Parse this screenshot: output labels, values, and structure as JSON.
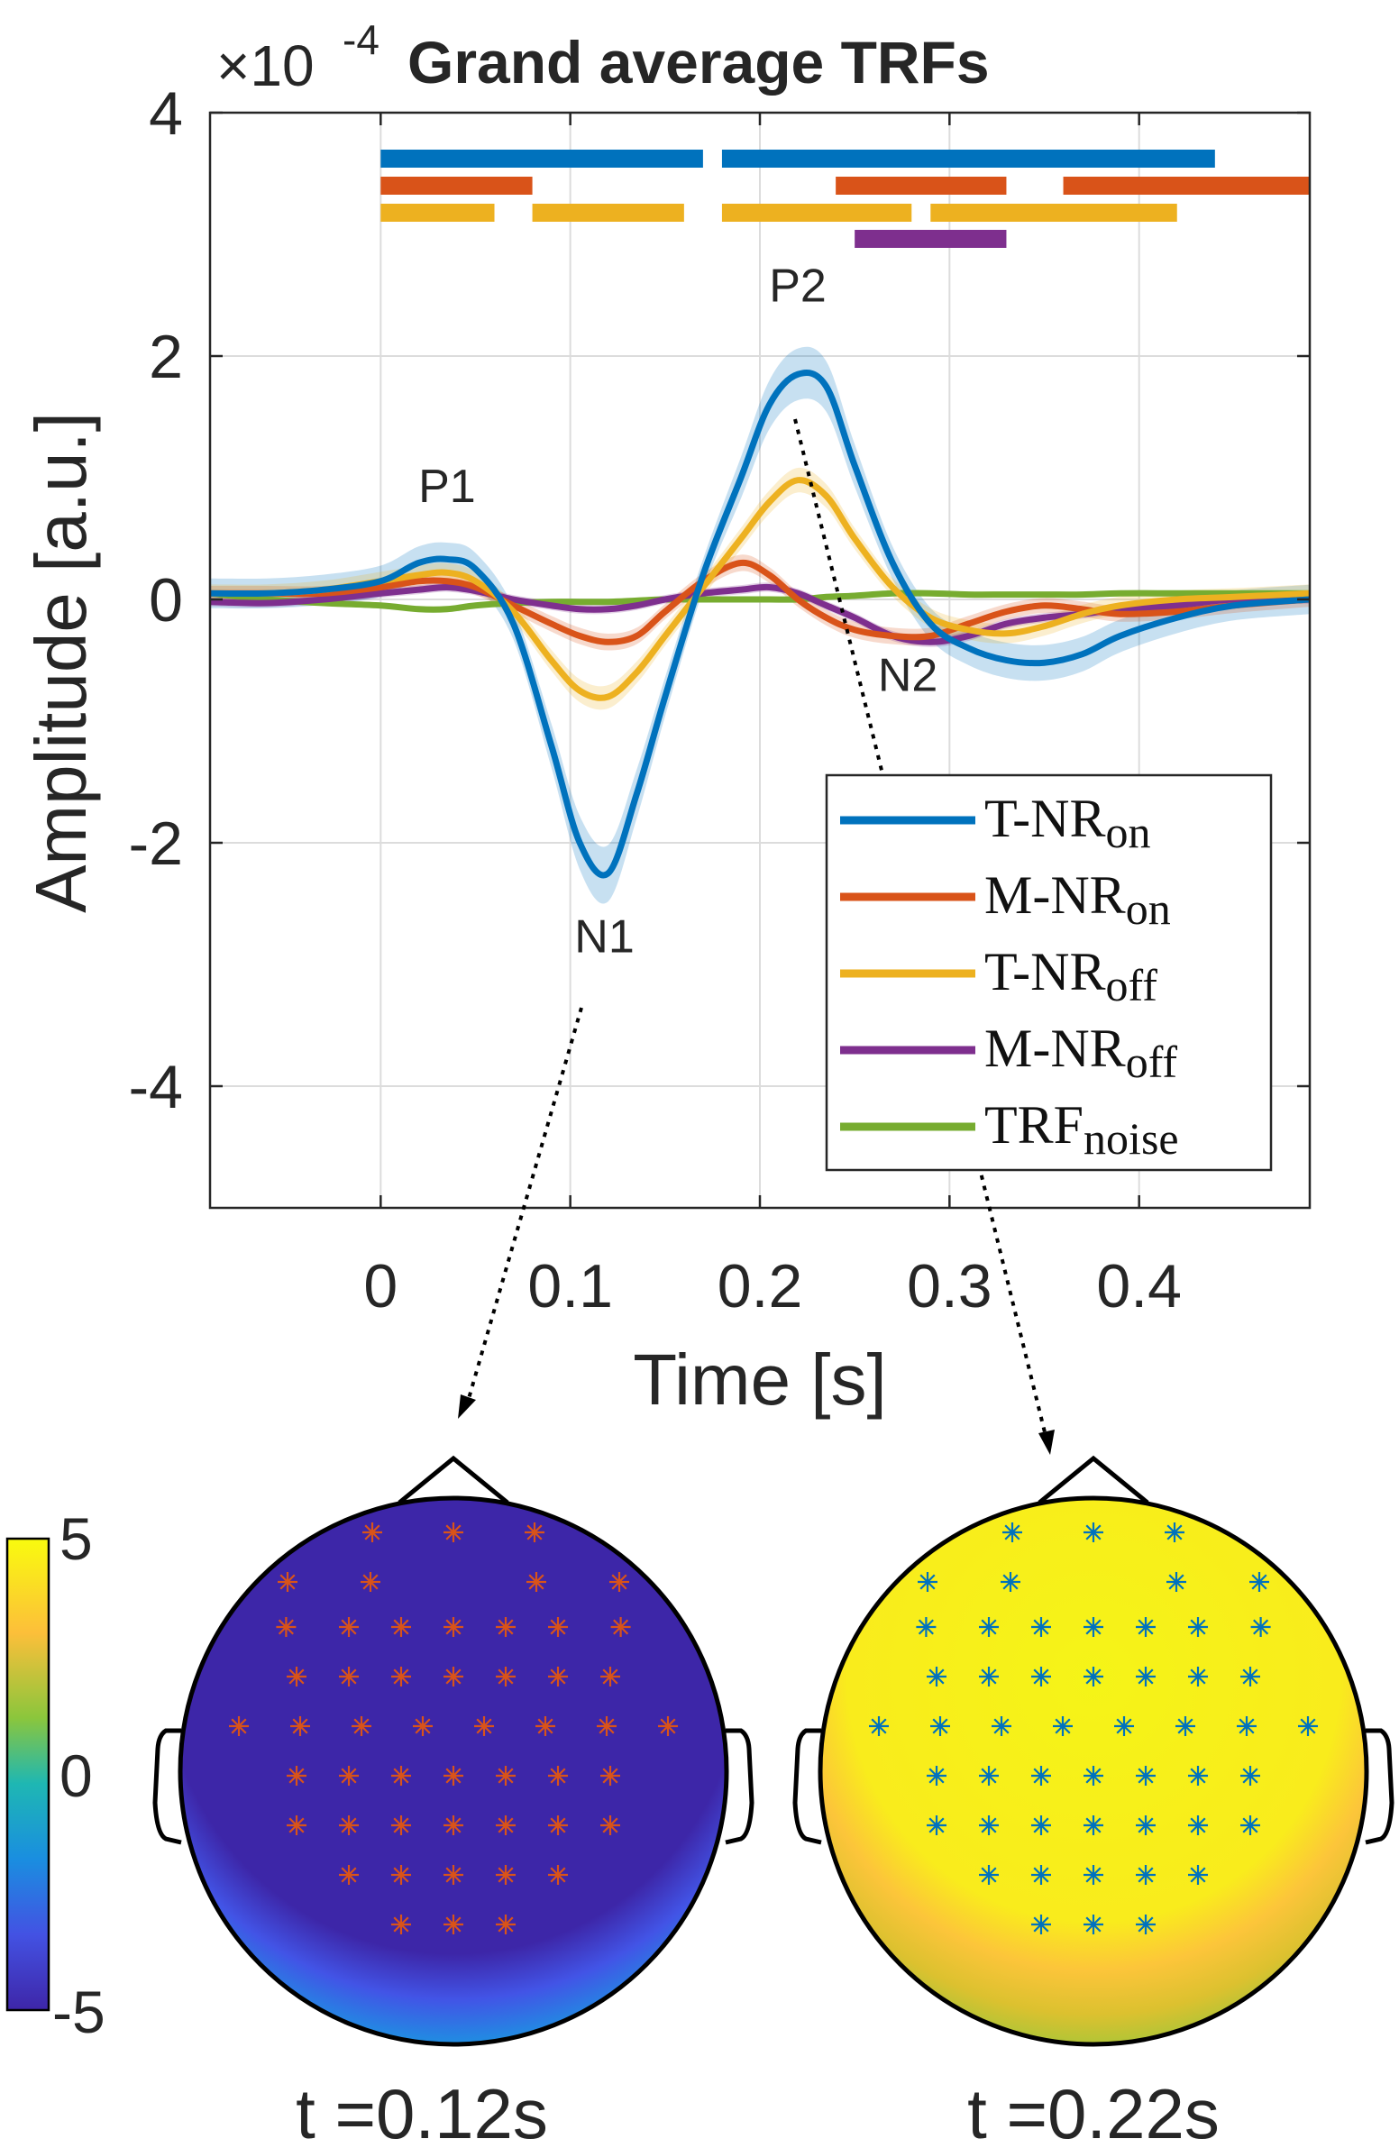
{
  "chart_data": [
    {
      "type": "line",
      "title": "Grand average TRFs",
      "y_exponent_label": "×10",
      "y_exponent_power": "-4",
      "xlabel": "Time [s]",
      "ylabel": "Amplitude [a.u.]",
      "xlim": [
        -0.09,
        0.49
      ],
      "ylim": [
        -5,
        4
      ],
      "x_ticks": [
        0,
        0.1,
        0.2,
        0.3,
        0.4
      ],
      "x_tick_labels": [
        "0",
        "0.1",
        "0.2",
        "0.3",
        "0.4"
      ],
      "y_ticks": [
        4,
        2,
        0,
        -2,
        -4
      ],
      "y_tick_labels": [
        "4",
        "2",
        "0",
        "-2",
        "-4"
      ],
      "grid": true,
      "legend_position": "bottom-right",
      "x": [
        -0.09,
        -0.06,
        -0.03,
        0.0,
        0.02,
        0.035,
        0.05,
        0.07,
        0.09,
        0.105,
        0.12,
        0.135,
        0.15,
        0.17,
        0.19,
        0.205,
        0.22,
        0.235,
        0.25,
        0.27,
        0.29,
        0.31,
        0.33,
        0.35,
        0.37,
        0.39,
        0.42,
        0.45,
        0.49
      ],
      "series": [
        {
          "name": "T-NR",
          "sub": "on",
          "color": "#0072BD",
          "values": [
            0.05,
            0.05,
            0.08,
            0.15,
            0.3,
            0.33,
            0.25,
            -0.2,
            -1.2,
            -2.0,
            -2.25,
            -1.6,
            -0.8,
            0.2,
            1.0,
            1.6,
            1.85,
            1.75,
            1.1,
            0.3,
            -0.2,
            -0.4,
            -0.5,
            -0.52,
            -0.45,
            -0.3,
            -0.15,
            -0.05,
            0.0
          ],
          "band": 0.2
        },
        {
          "name": "M-NR",
          "sub": "on",
          "color": "#D95319",
          "values": [
            0.05,
            0.05,
            0.05,
            0.1,
            0.15,
            0.15,
            0.1,
            -0.05,
            -0.2,
            -0.3,
            -0.35,
            -0.3,
            -0.1,
            0.15,
            0.3,
            0.2,
            0.0,
            -0.15,
            -0.25,
            -0.3,
            -0.3,
            -0.2,
            -0.1,
            -0.05,
            -0.08,
            -0.12,
            -0.1,
            -0.05,
            0.0
          ],
          "band": 0.1
        },
        {
          "name": "T-NR",
          "sub": "off",
          "color": "#EDB120",
          "values": [
            0.05,
            0.05,
            0.08,
            0.15,
            0.2,
            0.22,
            0.15,
            -0.1,
            -0.5,
            -0.75,
            -0.8,
            -0.6,
            -0.3,
            0.1,
            0.5,
            0.8,
            0.98,
            0.85,
            0.5,
            0.1,
            -0.15,
            -0.25,
            -0.28,
            -0.22,
            -0.12,
            -0.05,
            0.0,
            0.02,
            0.05
          ],
          "band": 0.12
        },
        {
          "name": "M-NR",
          "sub": "off",
          "color": "#7E2F8E",
          "values": [
            -0.02,
            -0.03,
            0.0,
            0.05,
            0.08,
            0.1,
            0.07,
            0.0,
            -0.05,
            -0.08,
            -0.08,
            -0.05,
            0.0,
            0.05,
            0.08,
            0.1,
            0.05,
            -0.05,
            -0.15,
            -0.3,
            -0.35,
            -0.3,
            -0.2,
            -0.15,
            -0.12,
            -0.08,
            -0.05,
            0.0,
            0.0
          ],
          "band": 0.06
        },
        {
          "name": "TRF",
          "sub": "noise",
          "color": "#77AC30",
          "values": [
            0.05,
            0.0,
            -0.03,
            -0.05,
            -0.08,
            -0.08,
            -0.05,
            -0.03,
            -0.02,
            -0.02,
            -0.02,
            -0.01,
            0.0,
            0.0,
            0.0,
            0.0,
            0.0,
            0.02,
            0.03,
            0.05,
            0.05,
            0.04,
            0.04,
            0.04,
            0.04,
            0.05,
            0.05,
            0.05,
            0.05
          ],
          "band": 0.0
        }
      ],
      "significance_bars": [
        {
          "color": "#0072BD",
          "segments": [
            [
              0.0,
              0.17
            ],
            [
              0.18,
              0.44
            ]
          ]
        },
        {
          "color": "#D95319",
          "segments": [
            [
              0.0,
              0.08
            ],
            [
              0.24,
              0.33
            ],
            [
              0.36,
              0.49
            ]
          ]
        },
        {
          "color": "#EDB120",
          "segments": [
            [
              0.0,
              0.06
            ],
            [
              0.08,
              0.16
            ],
            [
              0.18,
              0.28
            ],
            [
              0.29,
              0.42
            ]
          ]
        },
        {
          "color": "#7E2F8E",
          "segments": [
            [
              0.25,
              0.33
            ]
          ]
        }
      ],
      "annotations": [
        {
          "text": "P1",
          "x": 0.035,
          "y": 0.8
        },
        {
          "text": "N1",
          "x": 0.118,
          "y": -2.9
        },
        {
          "text": "P2",
          "x": 0.22,
          "y": 2.45
        },
        {
          "text": "N2",
          "x": 0.278,
          "y": -0.75
        }
      ]
    },
    {
      "type": "heatmap",
      "colorbar_ticks": [
        "5",
        "0",
        "-5"
      ],
      "clim": [
        -5,
        5
      ],
      "topoplots": [
        {
          "caption": "t =0.12s",
          "marker_color": "#D95319",
          "arrow_from_annotation": "N1"
        },
        {
          "caption": "t =0.22s",
          "marker_color": "#0072BD",
          "arrow_from_annotation": "P2"
        }
      ]
    }
  ]
}
